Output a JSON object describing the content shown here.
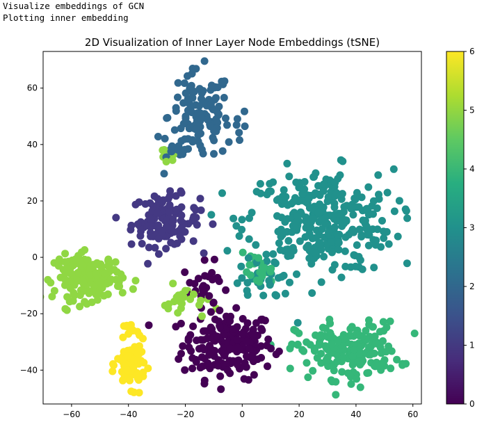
{
  "console": {
    "line1": "Visualize embeddings of GCN",
    "line2": "Plotting inner embedding"
  },
  "chart_data": {
    "type": "scatter",
    "title": "2D Visualization of Inner Layer Node Embeddings (tSNE)",
    "xlabel": "",
    "ylabel": "",
    "xlim": [
      -70,
      63
    ],
    "ylim": [
      -52,
      73
    ],
    "xticks": [
      -60,
      -40,
      -20,
      0,
      20,
      40,
      60
    ],
    "yticks": [
      -40,
      -20,
      0,
      20,
      40,
      60
    ],
    "xtick_labels": [
      "−60",
      "−40",
      "−20",
      "0",
      "20",
      "40",
      "60"
    ],
    "ytick_labels": [
      "−40",
      "−20",
      "0",
      "20",
      "40",
      "60"
    ],
    "colormap": "viridis",
    "colorbar": {
      "range": [
        0,
        6
      ],
      "ticks": [
        0,
        1,
        2,
        3,
        4,
        5,
        6
      ],
      "tick_labels": [
        "0",
        "1",
        "2",
        "3",
        "4",
        "5",
        "6"
      ]
    },
    "palette": [
      "#440154",
      "#443983",
      "#31688e",
      "#21918c",
      "#35b779",
      "#90d743",
      "#fde725"
    ],
    "clusters": [
      {
        "label": 0,
        "center": [
          -5,
          -31
        ],
        "spread": [
          8,
          6
        ],
        "count": 190
      },
      {
        "label": 0,
        "center": [
          -13,
          -10
        ],
        "spread": [
          4,
          4
        ],
        "count": 25
      },
      {
        "label": 1,
        "center": [
          -27,
          13
        ],
        "spread": [
          6,
          4.5
        ],
        "count": 120
      },
      {
        "label": 2,
        "center": [
          -15,
          50
        ],
        "spread": [
          5.5,
          8
        ],
        "count": 110
      },
      {
        "label": 2,
        "center": [
          -22,
          38
        ],
        "spread": [
          3,
          2.5
        ],
        "count": 15
      },
      {
        "label": 2,
        "center": [
          -2,
          46
        ],
        "spread": [
          2.5,
          3
        ],
        "count": 10
      },
      {
        "label": 3,
        "center": [
          27,
          13
        ],
        "spread": [
          13,
          9
        ],
        "count": 320
      },
      {
        "label": 3,
        "center": [
          8,
          -9
        ],
        "spread": [
          5,
          3
        ],
        "count": 25
      },
      {
        "label": 4,
        "center": [
          37,
          -33
        ],
        "spread": [
          9,
          5
        ],
        "count": 190
      },
      {
        "label": 4,
        "center": [
          5,
          -5
        ],
        "spread": [
          3,
          3
        ],
        "count": 20
      },
      {
        "label": 5,
        "center": [
          -54,
          -7
        ],
        "spread": [
          6,
          4
        ],
        "count": 160
      },
      {
        "label": 5,
        "center": [
          -20,
          -16
        ],
        "spread": [
          4,
          3
        ],
        "count": 25
      },
      {
        "label": 5,
        "center": [
          -26,
          36
        ],
        "spread": [
          2,
          2
        ],
        "count": 8
      },
      {
        "label": 6,
        "center": [
          -39,
          -38
        ],
        "spread": [
          2.5,
          4
        ],
        "count": 80
      },
      {
        "label": 6,
        "center": [
          -40,
          -26
        ],
        "spread": [
          2,
          2
        ],
        "count": 8
      }
    ]
  }
}
